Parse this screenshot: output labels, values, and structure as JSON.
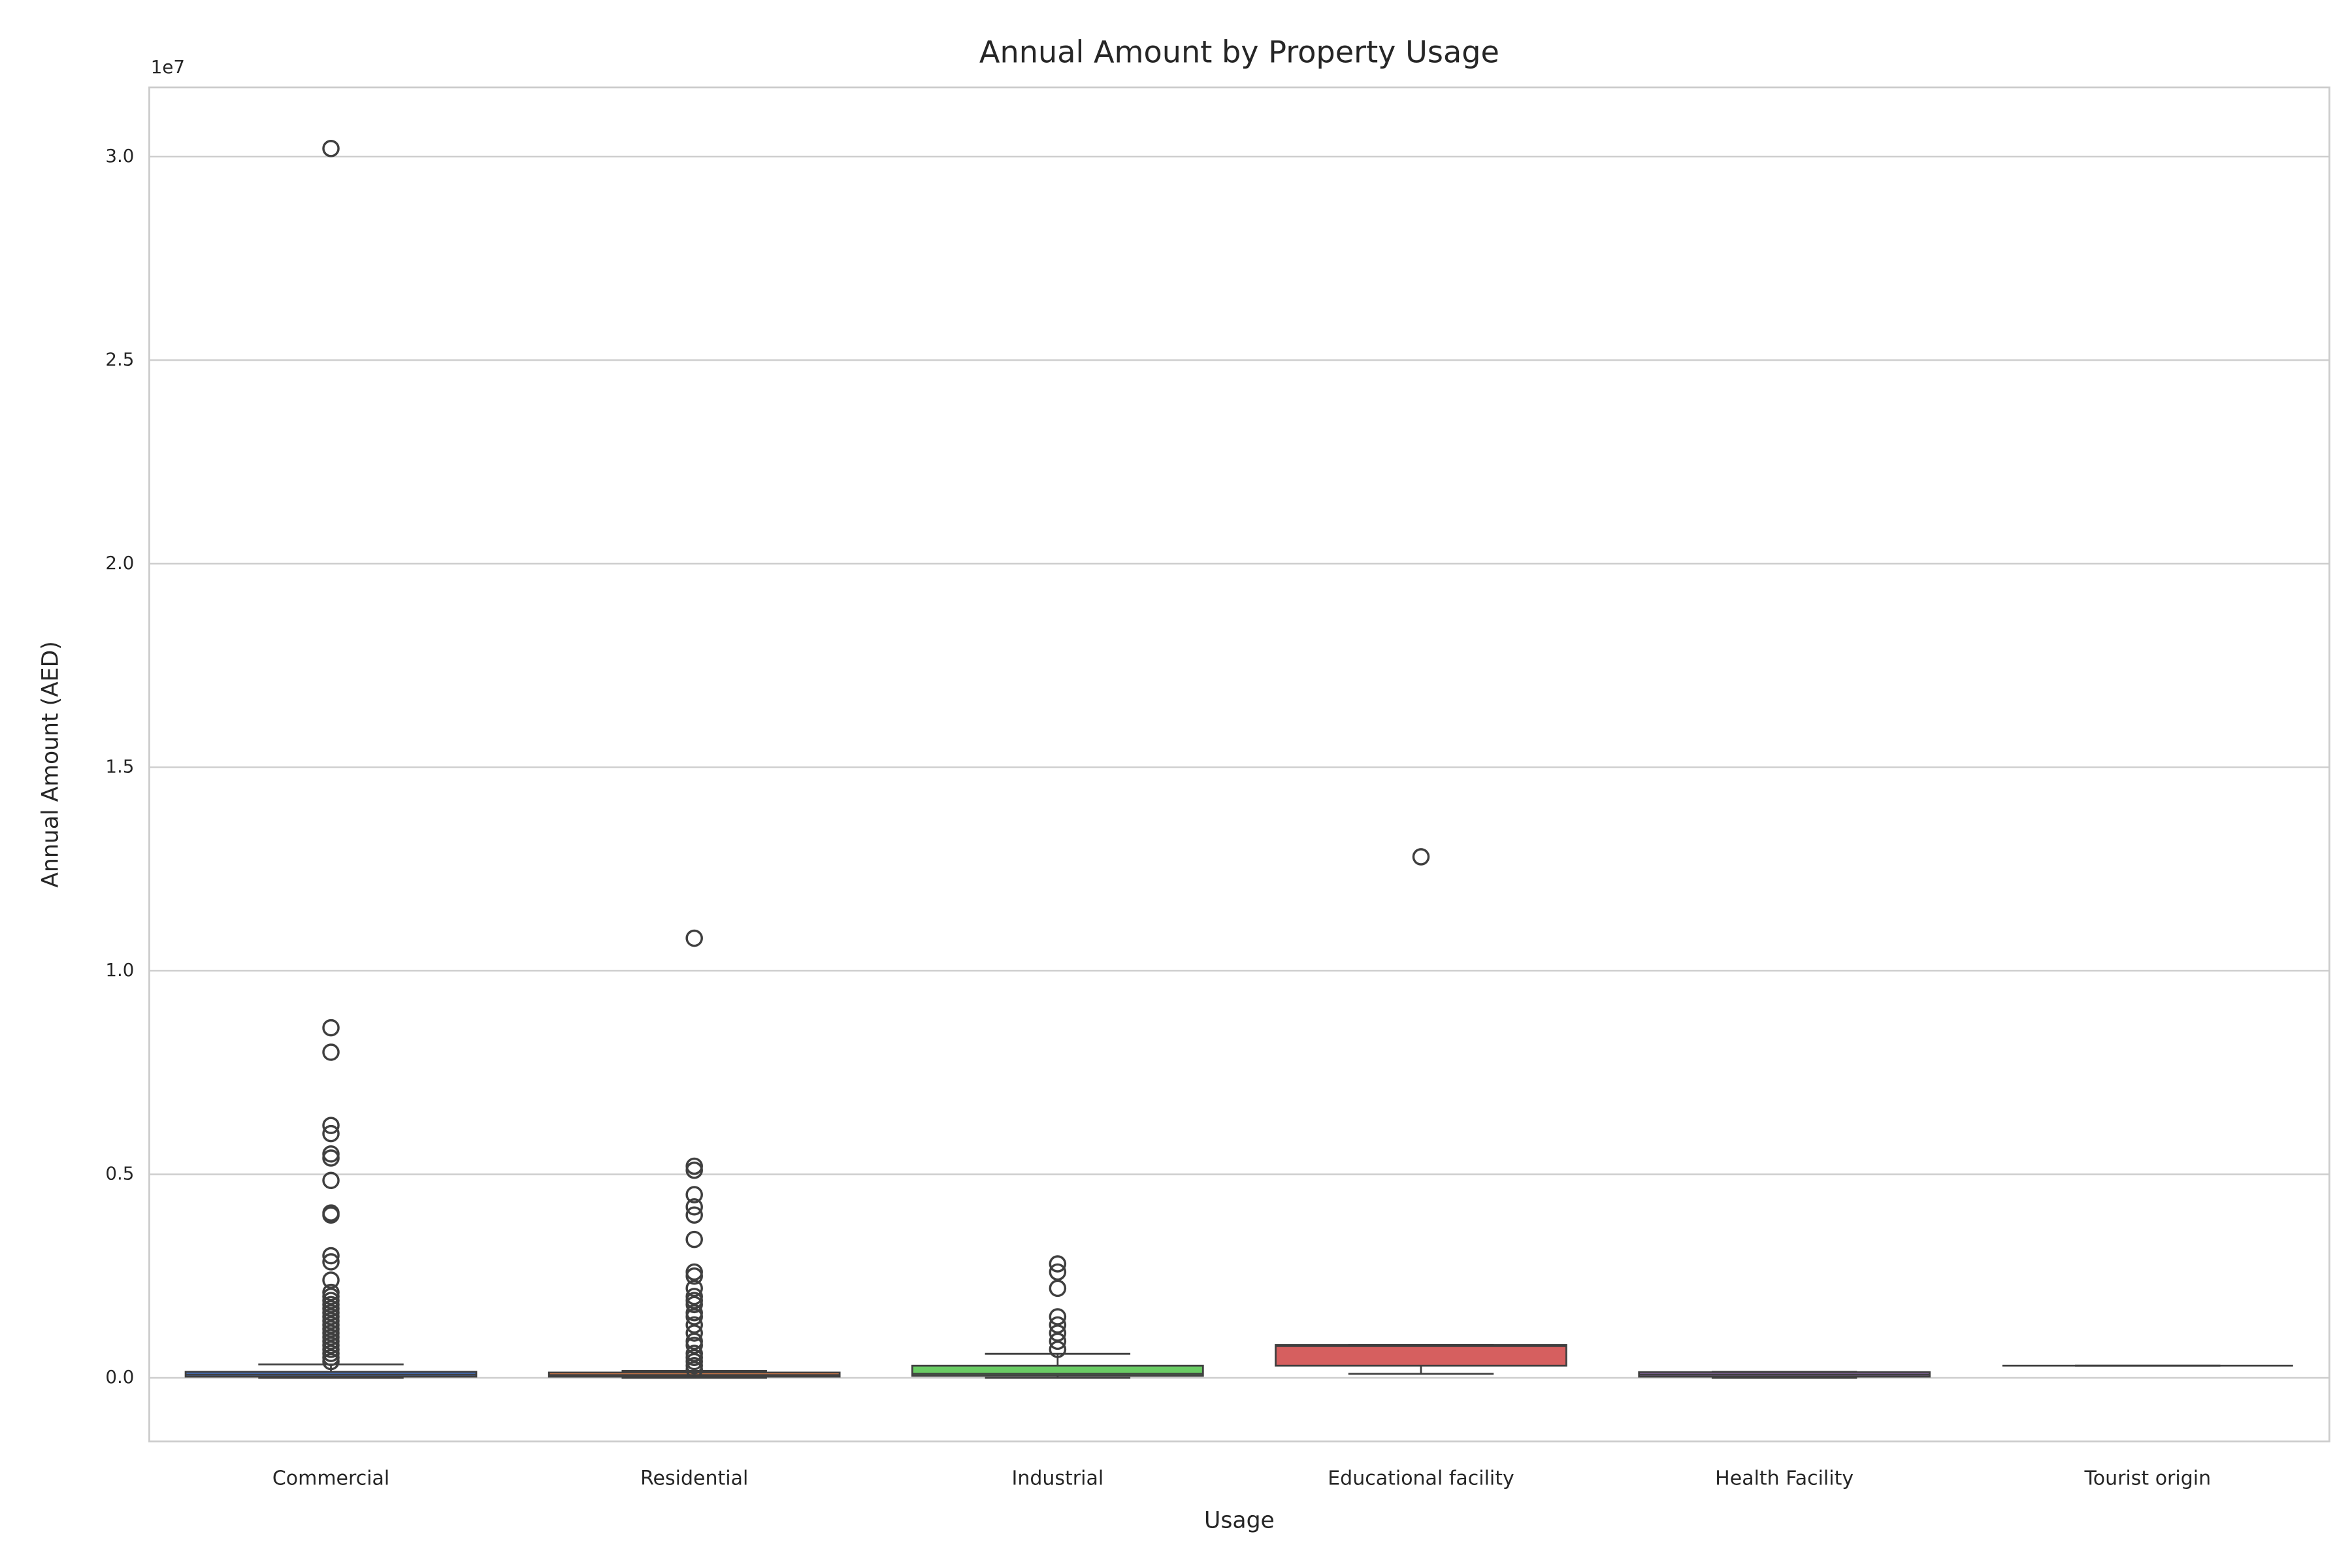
{
  "chart_data": {
    "type": "box",
    "title": "Annual Amount by Property Usage",
    "x_label": "Usage",
    "y_label": "Annual Amount (AED)",
    "y_offset_label": "1e7",
    "categories": [
      "Commercial",
      "Residential",
      "Industrial",
      "Educational facility",
      "Health Facility",
      "Tourist origin"
    ],
    "colors": [
      "#4878d0",
      "#ee854a",
      "#6acc64",
      "#d65f5f",
      "#956cb4",
      "#8c613c"
    ],
    "boxes": [
      {
        "whislo": 0,
        "q1": 0.003,
        "med": 0.008,
        "q3": 0.015,
        "whishi": 0.033,
        "fliers": [
          3.02,
          0.86,
          0.8,
          0.62,
          0.6,
          0.55,
          0.54,
          0.485,
          0.405,
          0.4,
          0.3,
          0.285,
          0.24,
          0.21,
          0.2,
          0.19,
          0.18,
          0.17,
          0.16,
          0.15,
          0.14,
          0.13,
          0.12,
          0.11,
          0.1,
          0.09,
          0.08,
          0.07,
          0.06,
          0.05,
          0.04
        ]
      },
      {
        "whislo": 0,
        "q1": 0.003,
        "med": 0.007,
        "q3": 0.013,
        "whishi": 0.017,
        "fliers": [
          1.08,
          0.52,
          0.51,
          0.45,
          0.42,
          0.4,
          0.34,
          0.26,
          0.25,
          0.22,
          0.2,
          0.19,
          0.18,
          0.16,
          0.15,
          0.13,
          0.11,
          0.09,
          0.08,
          0.06,
          0.05,
          0.04,
          0.03,
          0.02
        ]
      },
      {
        "whislo": 0,
        "q1": 0.005,
        "med": 0.01,
        "q3": 0.03,
        "whishi": 0.059,
        "fliers": [
          0.28,
          0.26,
          0.22,
          0.15,
          0.13,
          0.11,
          0.09,
          0.07
        ]
      },
      {
        "whislo": 0.01,
        "q1": 0.03,
        "med": 0.078,
        "q3": 0.081,
        "whishi": 0.081,
        "fliers": [
          1.28
        ]
      },
      {
        "whislo": 0,
        "q1": 0.003,
        "med": 0.008,
        "q3": 0.014,
        "whishi": 0.015,
        "fliers": []
      },
      {
        "whislo": 0.03,
        "q1": 0.03,
        "med": 0.03,
        "q3": 0.03,
        "whishi": 0.03,
        "fliers": []
      }
    ],
    "ylim": [
      -0.156,
      3.17
    ],
    "yticks": [
      {
        "value": 0,
        "label": "0.0"
      },
      0.5,
      {
        "value": 1,
        "label": "1.0"
      },
      1.5,
      {
        "value": 2,
        "label": "2.0"
      },
      2.5,
      {
        "value": 3,
        "label": "3.0"
      }
    ],
    "grid": true
  }
}
